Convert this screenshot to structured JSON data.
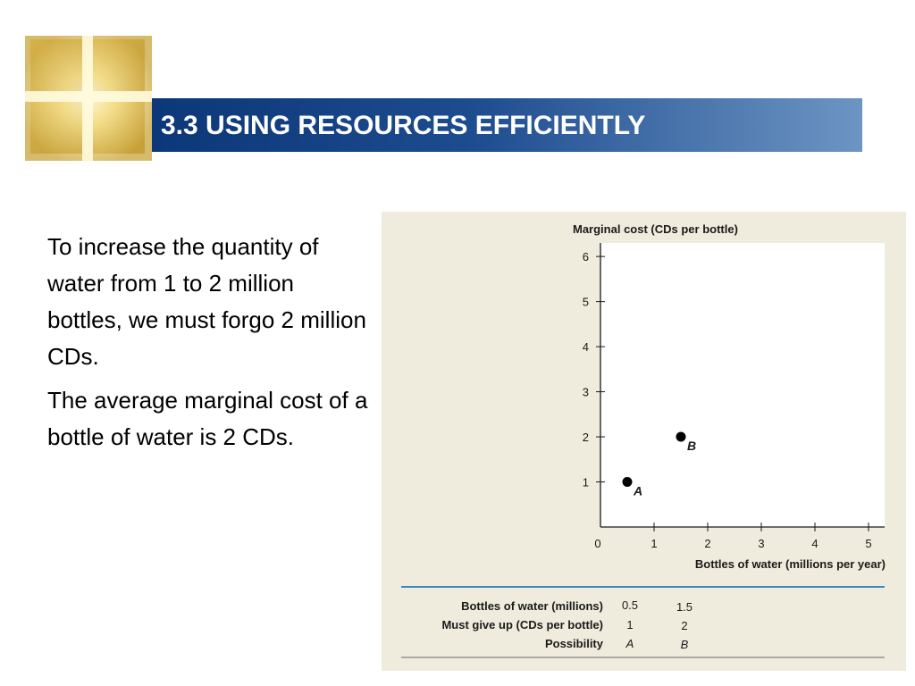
{
  "title": "3.3 USING RESOURCES EFFICIENTLY",
  "paragraphs": [
    "To increase the quantity of water from 1 to 2 million bottles, we must forgo 2 million CDs.",
    "The average marginal cost of a bottle of water is 2 CDs."
  ],
  "chart_data": {
    "type": "scatter",
    "ylabel": "Marginal cost (CDs per bottle)",
    "xlabel": "Bottles of water (millions per year)",
    "xlim": [
      0,
      5.3
    ],
    "ylim": [
      0,
      6.3
    ],
    "x_ticks": [
      0,
      1,
      2,
      3,
      4,
      5
    ],
    "y_ticks": [
      1,
      2,
      3,
      4,
      5,
      6
    ],
    "grid": false,
    "points": [
      {
        "x": 0.5,
        "y": 1,
        "label": "A"
      },
      {
        "x": 1.5,
        "y": 2,
        "label": "B"
      }
    ],
    "point_color": "#000000",
    "table": {
      "rows": [
        {
          "label": "Bottles of water (millions)",
          "values": [
            "0.5",
            "1.5"
          ],
          "italic": false
        },
        {
          "label": "Must give up (CDs per bottle)",
          "values": [
            "1",
            "2"
          ],
          "italic": false
        },
        {
          "label": "Possibility",
          "values": [
            "A",
            "B"
          ],
          "italic": true
        }
      ],
      "rule_color": "#3a87c0"
    }
  },
  "colors": {
    "title_bar_dark": "#0c3778",
    "title_bar_light": "#6d95c3",
    "panel_background": "#efecdd"
  },
  "icons": {
    "logo": "golden-cross-glow-logo"
  }
}
